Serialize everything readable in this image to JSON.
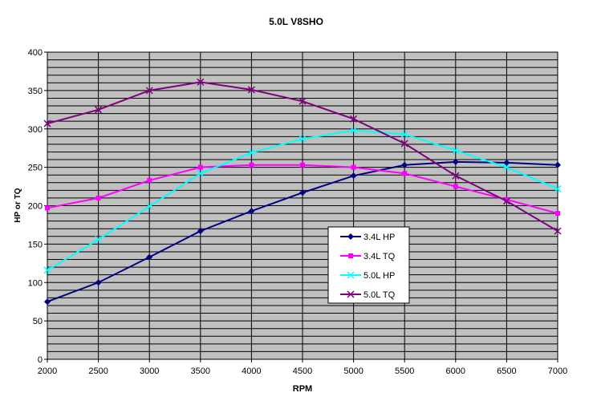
{
  "chart_data": {
    "type": "line",
    "title": "5.0L V8SHO",
    "xlabel": "RPM",
    "ylabel": "HP or TQ",
    "x": [
      2000,
      2500,
      3000,
      3500,
      4000,
      4500,
      5000,
      5500,
      6000,
      6500,
      7000
    ],
    "xlim": [
      2000,
      7000
    ],
    "ylim": [
      0,
      400
    ],
    "x_ticks": [
      "2000",
      "2500",
      "3000",
      "3500",
      "4000",
      "4500",
      "5000",
      "5500",
      "6000",
      "6500",
      "7000"
    ],
    "y_ticks": [
      "0",
      "50",
      "100",
      "150",
      "200",
      "250",
      "300",
      "350",
      "400"
    ],
    "grid": true,
    "plot_background": "#c0c0c0",
    "legend_placement": "center-right",
    "series": [
      {
        "name": "3.4L HP",
        "color": "#000080",
        "marker": "diamond",
        "values": [
          75,
          100,
          133,
          167,
          193,
          217,
          239,
          253,
          257,
          256,
          253
        ]
      },
      {
        "name": "3.4L TQ",
        "color": "#ff00ff",
        "marker": "square",
        "values": [
          197,
          210,
          233,
          250,
          253,
          253,
          250,
          242,
          225,
          208,
          190
        ]
      },
      {
        "name": "5.0L HP",
        "color": "#00ffff",
        "marker": "x",
        "values": [
          116,
          156,
          199,
          242,
          269,
          287,
          298,
          293,
          272,
          250,
          222
        ]
      },
      {
        "name": "5.0L TQ",
        "color": "#800080",
        "marker": "x",
        "values": [
          307,
          325,
          350,
          361,
          351,
          336,
          313,
          281,
          239,
          206,
          167
        ]
      }
    ]
  }
}
